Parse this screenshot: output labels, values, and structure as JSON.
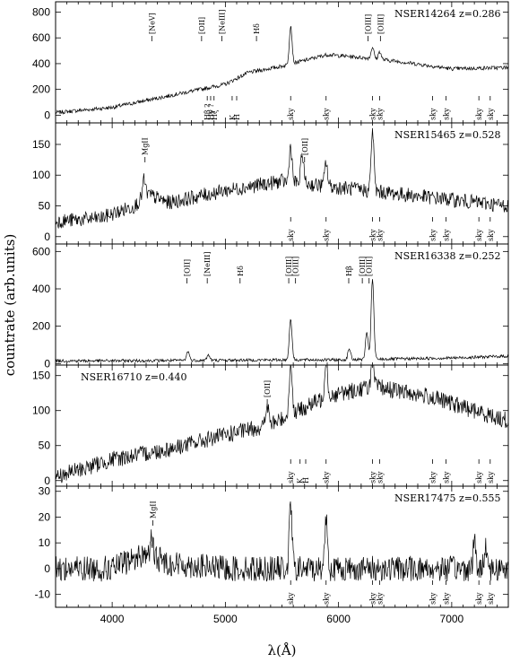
{
  "chart_data": {
    "type": "line",
    "xlabel": "λ(Å)",
    "ylabel": "countrate (arb.units)",
    "xlim": [
      3500,
      7500
    ],
    "xticks": [
      4000,
      5000,
      6000,
      7000
    ],
    "panels": [
      {
        "name": "NSER14264",
        "z": "z=0.286",
        "ylim": [
          -60,
          880
        ],
        "yticks": [
          0,
          200,
          400,
          600,
          800
        ],
        "continuum": [
          [
            3500,
            20
          ],
          [
            4000,
            60
          ],
          [
            4500,
            150
          ],
          [
            5000,
            240
          ],
          [
            5200,
            330
          ],
          [
            5500,
            380
          ],
          [
            5900,
            470
          ],
          [
            6300,
            440
          ],
          [
            6500,
            420
          ],
          [
            7000,
            360
          ],
          [
            7500,
            370
          ]
        ],
        "peaks": [
          [
            5577,
            300
          ],
          [
            6300,
            90
          ],
          [
            6364,
            60
          ]
        ],
        "noise": 15,
        "top_lines": [
          {
            "label": "[NeV]",
            "x": 4350
          },
          {
            "label": "[OII]",
            "x": 4790
          },
          {
            "label": "[NeIII]",
            "x": 4970
          },
          {
            "label": "Hδ",
            "x": 5275
          },
          {
            "label": "[OIII]",
            "x": 6260
          },
          {
            "label": "[OIII]",
            "x": 6370
          }
        ],
        "bottom_lines": [
          {
            "label": "Hβ ?",
            "x": 4840
          },
          {
            "label": "Hγ ?",
            "x": 4870
          },
          {
            "label": "Hζ",
            "x": 4900
          },
          {
            "label": "K",
            "x": 5060
          },
          {
            "label": "H",
            "x": 5100
          },
          {
            "label": "sky",
            "x": 5577
          },
          {
            "label": "sky",
            "x": 5890
          },
          {
            "label": "sky",
            "x": 6300
          },
          {
            "label": "sky",
            "x": 6364
          },
          {
            "label": "sky",
            "x": 6830
          },
          {
            "label": "sky",
            "x": 6950
          },
          {
            "label": "sky",
            "x": 7240
          },
          {
            "label": "sky",
            "x": 7340
          }
        ]
      },
      {
        "name": "NSER15465",
        "z": "z=0.528",
        "ylim": [
          -12,
          185
        ],
        "yticks": [
          0,
          50,
          100,
          150
        ],
        "continuum": [
          [
            3500,
            25
          ],
          [
            3900,
            30
          ],
          [
            4200,
            50
          ],
          [
            4300,
            70
          ],
          [
            4500,
            55
          ],
          [
            5000,
            75
          ],
          [
            5500,
            90
          ],
          [
            6000,
            80
          ],
          [
            6500,
            70
          ],
          [
            7000,
            60
          ],
          [
            7500,
            50
          ]
        ],
        "peaks": [
          [
            4280,
            25
          ],
          [
            5577,
            60
          ],
          [
            5680,
            50
          ],
          [
            5890,
            40
          ],
          [
            6300,
            100
          ]
        ],
        "noise": 12,
        "top_lines": [
          {
            "label": "MgII",
            "x": 4290
          },
          {
            "label": "[OII]",
            "x": 5700
          }
        ],
        "bottom_lines": [
          {
            "label": "sky",
            "x": 5577
          },
          {
            "label": "sky",
            "x": 5890
          },
          {
            "label": "sky",
            "x": 6300
          },
          {
            "label": "sky",
            "x": 6364
          },
          {
            "label": "sky",
            "x": 6830
          },
          {
            "label": "sky",
            "x": 6950
          },
          {
            "label": "sky",
            "x": 7240
          },
          {
            "label": "sky",
            "x": 7340
          }
        ]
      },
      {
        "name": "NSER16338",
        "z": "z=0.252",
        "ylim": [
          -8,
          640
        ],
        "yticks": [
          0,
          200,
          400,
          600
        ],
        "continuum": [
          [
            3500,
            15
          ],
          [
            4000,
            15
          ],
          [
            5000,
            18
          ],
          [
            5500,
            20
          ],
          [
            6000,
            20
          ],
          [
            6500,
            25
          ],
          [
            7000,
            30
          ],
          [
            7500,
            40
          ]
        ],
        "peaks": [
          [
            4670,
            50
          ],
          [
            4850,
            30
          ],
          [
            5577,
            220
          ],
          [
            6095,
            60
          ],
          [
            6250,
            140
          ],
          [
            6300,
            430
          ]
        ],
        "noise": 8,
        "top_lines": [
          {
            "label": "[OII]",
            "x": 4660
          },
          {
            "label": "[NeIII]",
            "x": 4840
          },
          {
            "label": "Hδ",
            "x": 5130
          },
          {
            "label": "[OIII]",
            "x": 5560
          },
          {
            "label": "[OIII]",
            "x": 5620
          },
          {
            "label": "Hβ",
            "x": 6090
          },
          {
            "label": "[OIII]",
            "x": 6210
          },
          {
            "label": "[OIII]",
            "x": 6270
          }
        ],
        "bottom_lines": []
      },
      {
        "name": "NSER16710",
        "z": "z=0.440",
        "ylim": [
          -8,
          165
        ],
        "yticks": [
          0,
          50,
          100,
          150
        ],
        "continuum": [
          [
            3500,
            5
          ],
          [
            4000,
            30
          ],
          [
            4500,
            45
          ],
          [
            5000,
            65
          ],
          [
            5400,
            80
          ],
          [
            5900,
            120
          ],
          [
            6300,
            135
          ],
          [
            6800,
            120
          ],
          [
            7200,
            100
          ],
          [
            7500,
            85
          ]
        ],
        "peaks": [
          [
            5370,
            30
          ],
          [
            5577,
            80
          ],
          [
            5890,
            60
          ],
          [
            6300,
            40
          ]
        ],
        "noise": 12,
        "top_lines": [
          {
            "label": "[OII]",
            "x": 5370
          }
        ],
        "bottom_lines": [
          {
            "label": "sky",
            "x": 5577
          },
          {
            "label": "K",
            "x": 5660
          },
          {
            "label": "H",
            "x": 5710
          },
          {
            "label": "sky",
            "x": 5890
          },
          {
            "label": "sky",
            "x": 6300
          },
          {
            "label": "sky",
            "x": 6364
          },
          {
            "label": "sky",
            "x": 6830
          },
          {
            "label": "sky",
            "x": 6950
          },
          {
            "label": "sky",
            "x": 7240
          },
          {
            "label": "sky",
            "x": 7340
          }
        ]
      },
      {
        "name": "NSER17475",
        "z": "z=0.555",
        "ylim": [
          -15,
          32
        ],
        "yticks": [
          -10,
          0,
          10,
          20,
          30
        ],
        "continuum": [
          [
            3500,
            0
          ],
          [
            4000,
            0
          ],
          [
            4300,
            6
          ],
          [
            4500,
            2
          ],
          [
            5000,
            0
          ],
          [
            5500,
            0
          ],
          [
            6000,
            0
          ],
          [
            6500,
            0
          ],
          [
            7000,
            0
          ],
          [
            7500,
            0
          ]
        ],
        "peaks": [
          [
            4350,
            6
          ],
          [
            5577,
            25
          ],
          [
            5890,
            20
          ],
          [
            7200,
            10
          ],
          [
            7300,
            10
          ]
        ],
        "noise": 5,
        "top_lines": [
          {
            "label": "MgII",
            "x": 4360
          }
        ],
        "bottom_lines": [
          {
            "label": "sky",
            "x": 5577
          },
          {
            "label": "sky",
            "x": 5890
          },
          {
            "label": "sky",
            "x": 6300
          },
          {
            "label": "sky",
            "x": 6364
          },
          {
            "label": "sky",
            "x": 6830
          },
          {
            "label": "sky",
            "x": 6950
          },
          {
            "label": "sky",
            "x": 7240
          },
          {
            "label": "sky",
            "x": 7340
          }
        ]
      }
    ]
  }
}
